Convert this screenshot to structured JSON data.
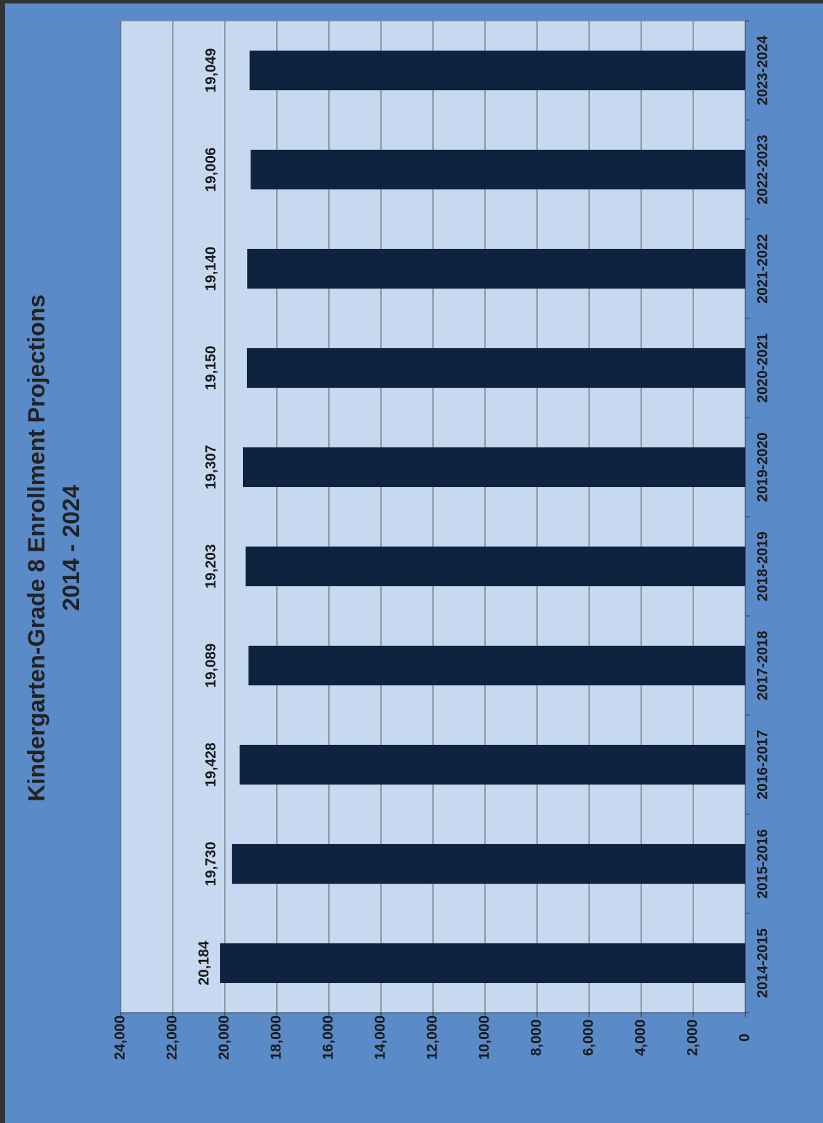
{
  "chart_data": {
    "type": "bar",
    "orientation": "horizontal",
    "title": "Kindergarten-Grade 8 Enrollment Projections",
    "subtitle": "2014 - 2024",
    "categories": [
      "2014-2015",
      "2015-2016",
      "2016-2017",
      "2017-2018",
      "2018-2019",
      "2019-2020",
      "2020-2021",
      "2021-2022",
      "2022-2023",
      "2023-2024"
    ],
    "values": [
      20184,
      19730,
      19428,
      19089,
      19203,
      19307,
      19150,
      19140,
      19006,
      19049
    ],
    "value_labels": [
      "20,184",
      "19,730",
      "19,428",
      "19,089",
      "19,203",
      "19,307",
      "19,150",
      "19,140",
      "19,006",
      "19,049"
    ],
    "color": "#0d2340",
    "ylim": [
      0,
      24000
    ],
    "yticks": [
      0,
      {
        "value": 2000,
        "label": "2,000"
      },
      {
        "value": 4000,
        "label": "4,000"
      },
      {
        "value": 6000,
        "label": "6,000"
      },
      {
        "value": 8000,
        "label": "8,000"
      },
      {
        "value": 10000,
        "label": "10,000"
      },
      {
        "value": 12000,
        "label": "12,000"
      },
      {
        "value": 14000,
        "label": "14,000"
      },
      {
        "value": 16000,
        "label": "16,000"
      },
      {
        "value": 18000,
        "label": "18,000"
      },
      {
        "value": 20000,
        "label": "20,000"
      },
      {
        "value": 22000,
        "label": "22,000"
      },
      {
        "value": 24000,
        "label": "24,000"
      }
    ],
    "grid": true
  }
}
